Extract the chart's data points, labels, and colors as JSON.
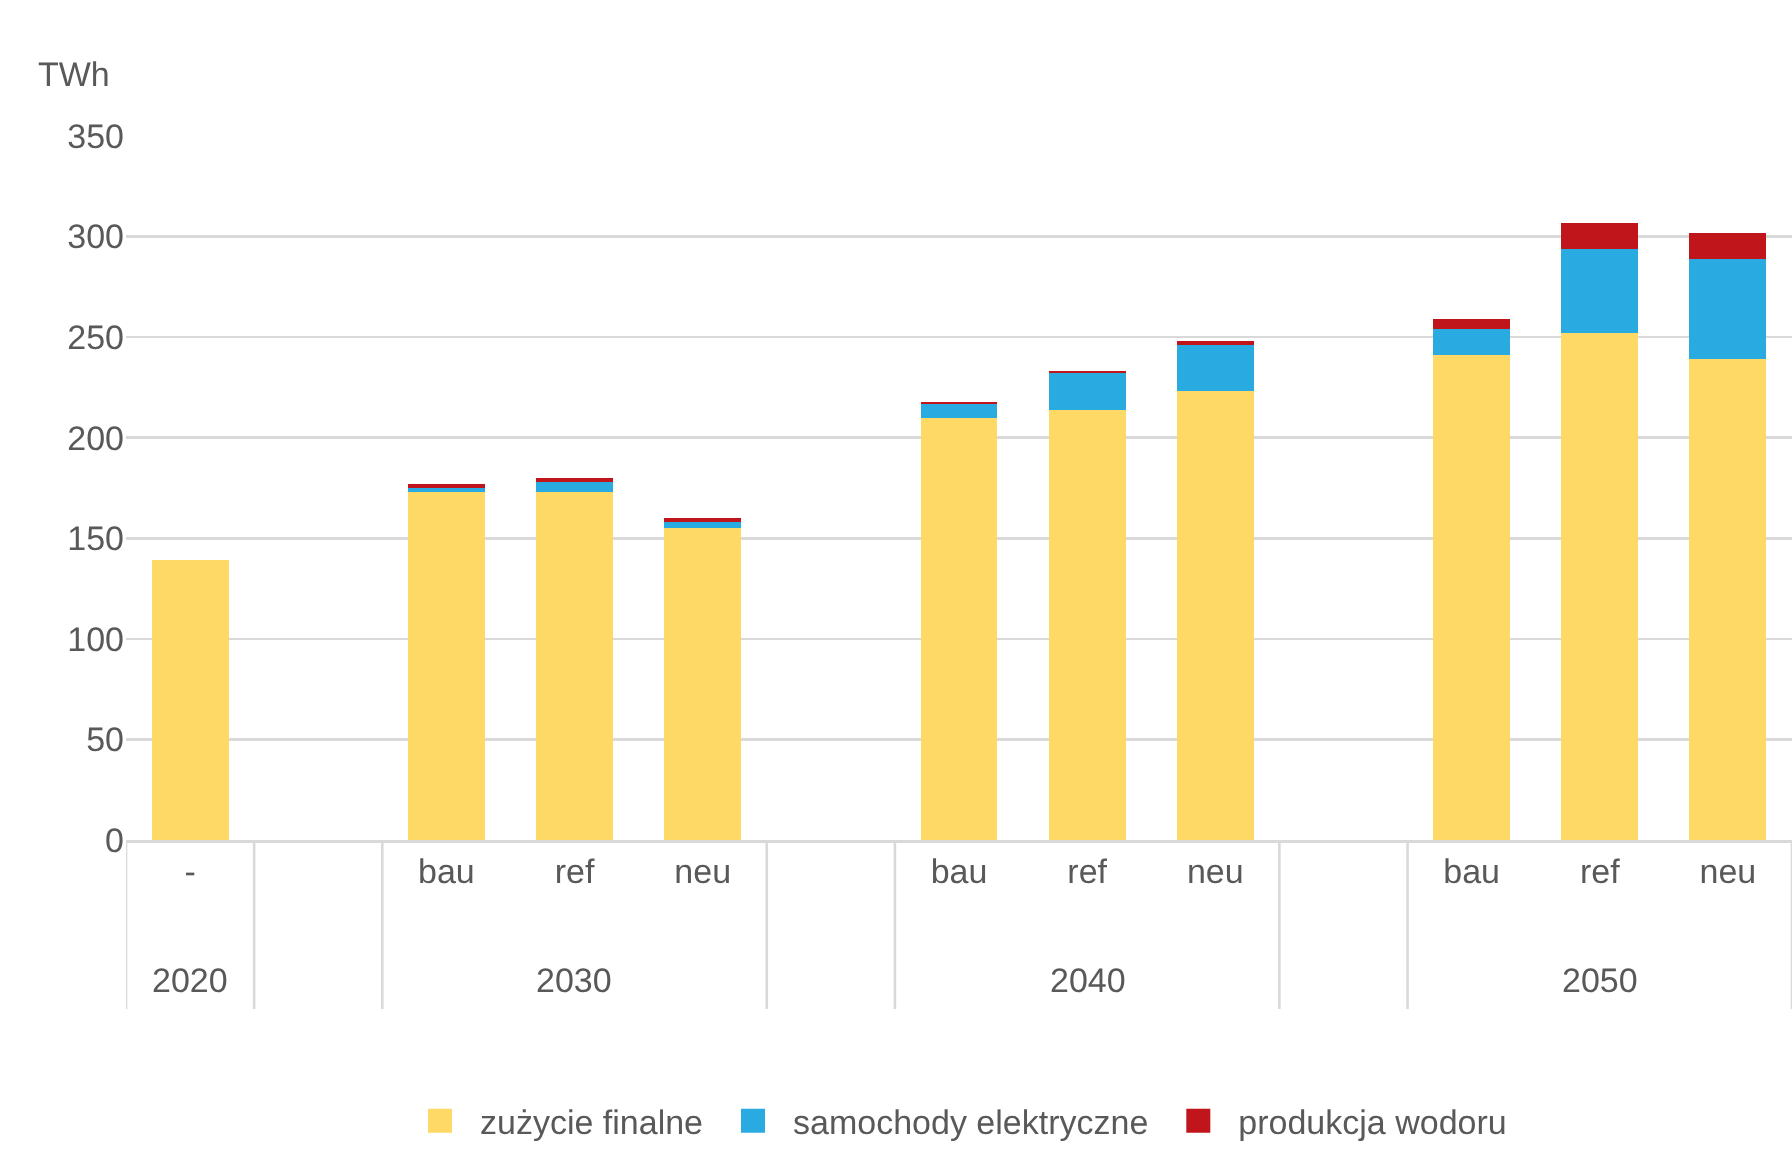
{
  "chart_data": {
    "type": "bar",
    "stacked": true,
    "ylabel": "TWh",
    "categories": [
      "-",
      null,
      "bau",
      "ref",
      "neu",
      null,
      "bau",
      "ref",
      "neu",
      null,
      "bau",
      "ref",
      "neu"
    ],
    "annotations": [
      "2020",
      "2030",
      "2040",
      "2050"
    ],
    "series": [
      {
        "name": "zużycie finalne",
        "color": "#ffd966",
        "values": [
          139,
          null,
          173,
          173,
          155,
          null,
          210,
          214,
          223,
          null,
          241,
          252,
          239
        ]
      },
      {
        "name": "samochody elektryczne",
        "color": "#29abe2",
        "values": [
          null,
          null,
          2,
          5,
          3,
          null,
          7,
          18,
          23,
          null,
          13,
          42,
          50
        ]
      },
      {
        "name": "produkcja wodoru",
        "color": "#c0161b",
        "values": [
          null,
          null,
          2,
          2,
          2,
          null,
          1,
          1,
          2,
          null,
          5,
          13,
          13
        ]
      }
    ],
    "ylim": [
      0,
      350
    ],
    "yticks": [
      0,
      50,
      100,
      150,
      200,
      250,
      300,
      350
    ],
    "grid": "y",
    "legend": "bottom"
  }
}
